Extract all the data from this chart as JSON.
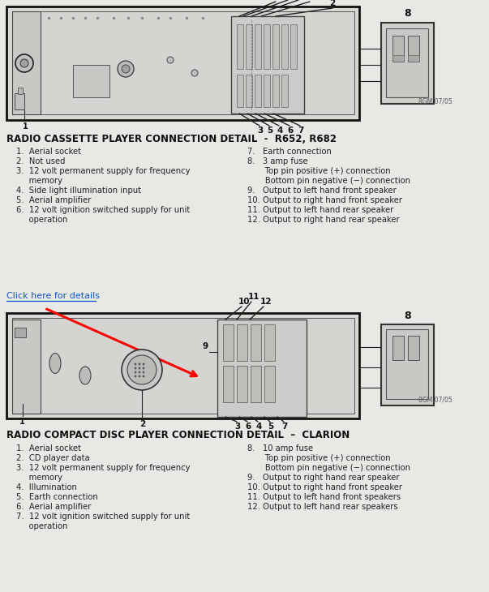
{
  "bg_color": "#e8e8e4",
  "diagram_bg": "#e0e0dc",
  "line_color": "#222222",
  "section1_title": "RADIO CASSETTE PLAYER CONNECTION DETAIL  -  R652, R682",
  "section2_title": "RADIO COMPACT DISC PLAYER CONNECTION DETAIL  –  CLARION",
  "click_text": "Click here for details",
  "section1_items_left": [
    "1.  Aerial socket",
    "2.  Not used",
    "3.  12 volt permanent supply for frequency",
    "     memory",
    "4.  Side light illumination input",
    "5.  Aerial amplifier",
    "6.  12 volt ignition switched supply for unit",
    "     operation"
  ],
  "section1_items_right": [
    "7.   Earth connection",
    "8.   3 amp fuse",
    "       Top pin positive (+) connection",
    "       Bottom pin negative (−) connection",
    "9.   Output to left hand front speaker",
    "10. Output to right hand front speaker",
    "11. Output to left hand rear speaker",
    "12. Output to right hand rear speaker"
  ],
  "section2_items_left": [
    "1.  Aerial socket",
    "2.  CD player data",
    "3.  12 volt permanent supply for frequency",
    "     memory",
    "4.  Illumination",
    "5.  Earth connection",
    "6.  Aerial amplifier",
    "7.  12 volt ignition switched supply for unit",
    "     operation"
  ],
  "section2_items_right": [
    "8.   10 amp fuse",
    "       Top pin positive (+) connection",
    "       Bottom pin negative (−) connection",
    "9.   Output to right hand rear speaker",
    "10. Output to right hand front speaker",
    "11. Output to left hand front speakers",
    "12. Output to left hand rear speakers"
  ],
  "watermark_top": "8GM 07/05",
  "watermark_bottom": "8GM 07/05"
}
